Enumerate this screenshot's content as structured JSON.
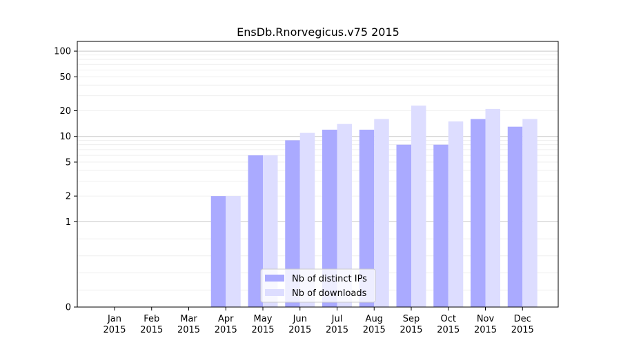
{
  "chart_data": {
    "type": "bar",
    "title": "EnsDb.Rnorvegicus.v75 2015",
    "xlabel": "",
    "ylabel": "",
    "y_scale": "symlog",
    "ylim": [
      0,
      130
    ],
    "grid": "horizontal",
    "legend_position": "lower-center",
    "categories": [
      [
        "Jan",
        "2015"
      ],
      [
        "Feb",
        "2015"
      ],
      [
        "Mar",
        "2015"
      ],
      [
        "Apr",
        "2015"
      ],
      [
        "May",
        "2015"
      ],
      [
        "Jun",
        "2015"
      ],
      [
        "Jul",
        "2015"
      ],
      [
        "Aug",
        "2015"
      ],
      [
        "Sep",
        "2015"
      ],
      [
        "Oct",
        "2015"
      ],
      [
        "Nov",
        "2015"
      ],
      [
        "Dec",
        "2015"
      ]
    ],
    "y_ticks": [
      {
        "value": 0,
        "label": "0"
      },
      {
        "value": 1,
        "label": "1"
      },
      {
        "value": 2,
        "label": "2"
      },
      {
        "value": 5,
        "label": "5"
      },
      {
        "value": 10,
        "label": "10"
      },
      {
        "value": 20,
        "label": "20"
      },
      {
        "value": 50,
        "label": "50"
      },
      {
        "value": 100,
        "label": "100"
      }
    ],
    "series": [
      {
        "name": "Nb of distinct IPs",
        "color": "#aaaaff",
        "values": [
          0,
          0,
          0,
          2,
          6,
          9,
          12,
          12,
          8,
          8,
          16,
          13
        ]
      },
      {
        "name": "Nb of downloads",
        "color": "#ddddff",
        "values": [
          0,
          0,
          0,
          2,
          6,
          11,
          14,
          16,
          23,
          15,
          21,
          16
        ]
      }
    ]
  }
}
